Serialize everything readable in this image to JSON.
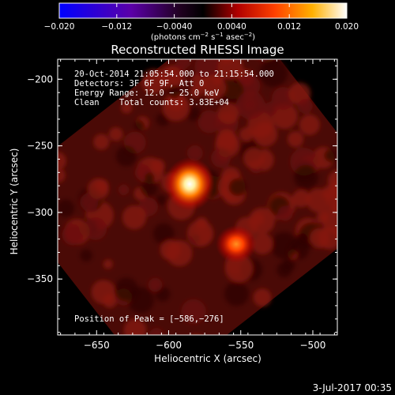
{
  "chart_data": {
    "type": "heatmap",
    "title": "Reconstructed RHESSI Image",
    "xlabel": "Heliocentric X (arcsec)",
    "ylabel": "Heliocentric Y (arcsec)",
    "xlim": [
      -677,
      -483
    ],
    "ylim": [
      -392,
      -185
    ],
    "xticks": [
      -650,
      -600,
      -550,
      -500
    ],
    "xtick_labels": [
      "−650",
      "−600",
      "−550",
      "−500"
    ],
    "yticks": [
      -200,
      -250,
      -300,
      -350
    ],
    "ytick_labels": [
      "−200",
      "−250",
      "−300",
      "−350"
    ],
    "colorbar": {
      "range": [
        -0.02,
        0.02
      ],
      "ticks": [
        -0.02,
        -0.012,
        -0.004,
        0.004,
        0.012,
        0.02
      ],
      "tick_labels": [
        "−0.020",
        "−0.012",
        "−0.0040",
        "0.0040",
        "0.012",
        "0.020"
      ],
      "unit_parts": [
        "(photons cm",
        "−2",
        " s",
        "−1",
        " asec",
        "−2",
        ")"
      ],
      "colors": [
        "#0000ff",
        "#5b00a8",
        "#200020",
        "#000000",
        "#b00000",
        "#ff4000",
        "#ffb000",
        "#ffffff"
      ]
    },
    "info_lines": [
      "20-Oct-2014 21:05:54.000 to 21:15:54.000",
      "Detectors: 3F 6F 9F, Att 0",
      "Energy Range: 12.0 − 25.0 keV",
      "Clean    Total counts: 3.83E+04"
    ],
    "peak_label": "Position of Peak = [−586,−276]",
    "sources": [
      {
        "x": -586,
        "y": -276,
        "peak": 0.02
      },
      {
        "x": -550,
        "y": -318,
        "peak": 0.013
      }
    ],
    "background_level": 0.005
  },
  "footer": {
    "date": "3-Jul-2017 00:35"
  }
}
